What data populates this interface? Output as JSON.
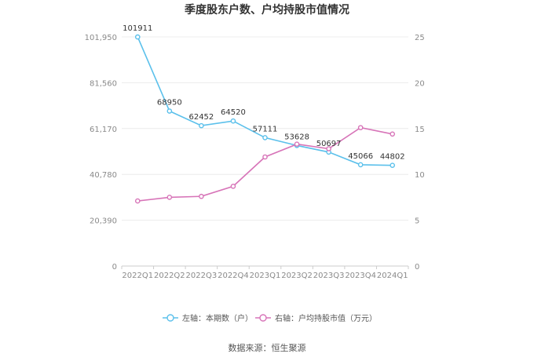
{
  "chart_data": {
    "type": "line",
    "title": "季度股东户数、户均持股市值情况",
    "categories": [
      "2022Q1",
      "2022Q2",
      "2022Q3",
      "2022Q4",
      "2023Q1",
      "2023Q2",
      "2023Q3",
      "2023Q4",
      "2024Q1"
    ],
    "left_axis": {
      "ylim": [
        0,
        101950
      ],
      "ticks": [
        0,
        20390,
        40780,
        61170,
        81560,
        101950
      ],
      "tick_labels": [
        "0",
        "20,390",
        "40,780",
        "61,170",
        "81,560",
        "101,950"
      ]
    },
    "right_axis": {
      "ylim": [
        0,
        25
      ],
      "ticks": [
        0,
        5,
        10,
        15,
        20,
        25
      ],
      "tick_labels": [
        "0",
        "5",
        "10",
        "15",
        "20",
        "25"
      ]
    },
    "series": [
      {
        "name": "左轴：本期数（户）",
        "axis": "left",
        "color": "#5bc0eb",
        "values": [
          101911,
          68950,
          62452,
          64520,
          57111,
          53628,
          50697,
          45066,
          44802
        ],
        "labels": [
          "101911",
          "68950",
          "62452",
          "64520",
          "57111",
          "53628",
          "50697",
          "45066",
          "44802"
        ]
      },
      {
        "name": "右轴：户均持股市值（万元）",
        "axis": "right",
        "color": "#d774b8",
        "values": [
          7.1,
          7.5,
          7.6,
          8.7,
          11.9,
          13.3,
          12.8,
          15.1,
          14.4
        ]
      }
    ],
    "grid": true,
    "legend_position": "bottom"
  },
  "source": "数据来源：恒生聚源"
}
